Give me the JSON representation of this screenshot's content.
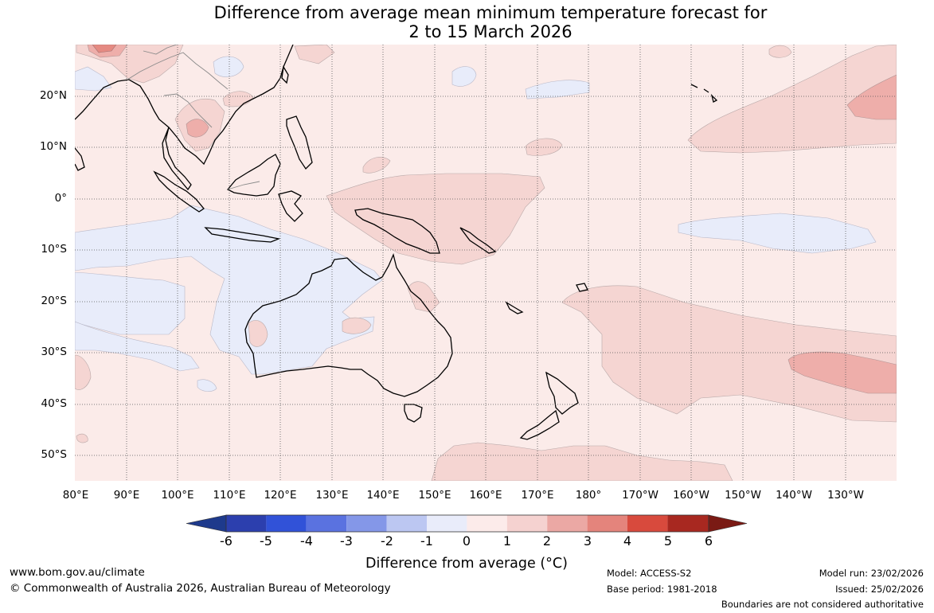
{
  "title": {
    "line1": "Difference from average mean minimum temperature forecast for",
    "line2": "2 to 15 March 2026"
  },
  "axes": {
    "latitude_ticks": [
      "20°N",
      "10°N",
      "0°",
      "10°S",
      "20°S",
      "30°S",
      "40°S",
      "50°S"
    ],
    "longitude_ticks": [
      "80°E",
      "90°E",
      "100°E",
      "110°E",
      "120°E",
      "130°E",
      "140°E",
      "150°E",
      "160°E",
      "170°E",
      "180°",
      "170°W",
      "160°W",
      "150°W",
      "140°W",
      "130°W"
    ]
  },
  "colorbar": {
    "ticks": [
      "-6",
      "-5",
      "-4",
      "-3",
      "-2",
      "-1",
      "0",
      "1",
      "2",
      "3",
      "4",
      "5",
      "6"
    ],
    "colors": [
      "#1e3a8c",
      "#2c3fae",
      "#3152d8",
      "#5a72e0",
      "#8497e8",
      "#bcc7f2",
      "#e9ecfa",
      "#fcebea",
      "#f5d2d0",
      "#eba8a4",
      "#e4847c",
      "#d84a3d",
      "#a82820",
      "#7a1a14"
    ],
    "label": "Difference from average (°C)"
  },
  "legend_levels": [
    {
      "name": "-1 to 0",
      "color": "#e8ecfa"
    },
    {
      "name": "0 to 1",
      "color": "#fbebe9"
    },
    {
      "name": "1 to 2",
      "color": "#f5d5d2"
    },
    {
      "name": "2 to 3",
      "color": "#eeaeaa"
    },
    {
      "name": "3 to 4",
      "color": "#e58a82"
    }
  ],
  "footer": {
    "website": "www.bom.gov.au/climate",
    "copyright": "© Commonwealth of Australia 2026, Australian Bureau of Meteorology",
    "model": "Model: ACCESS-S2",
    "base_period": "Base period: 1981-2018",
    "model_run": "Model run: 23/02/2026",
    "issued": "Issued: 25/02/2026",
    "disclaimer": "Boundaries are not considered authoritative"
  }
}
